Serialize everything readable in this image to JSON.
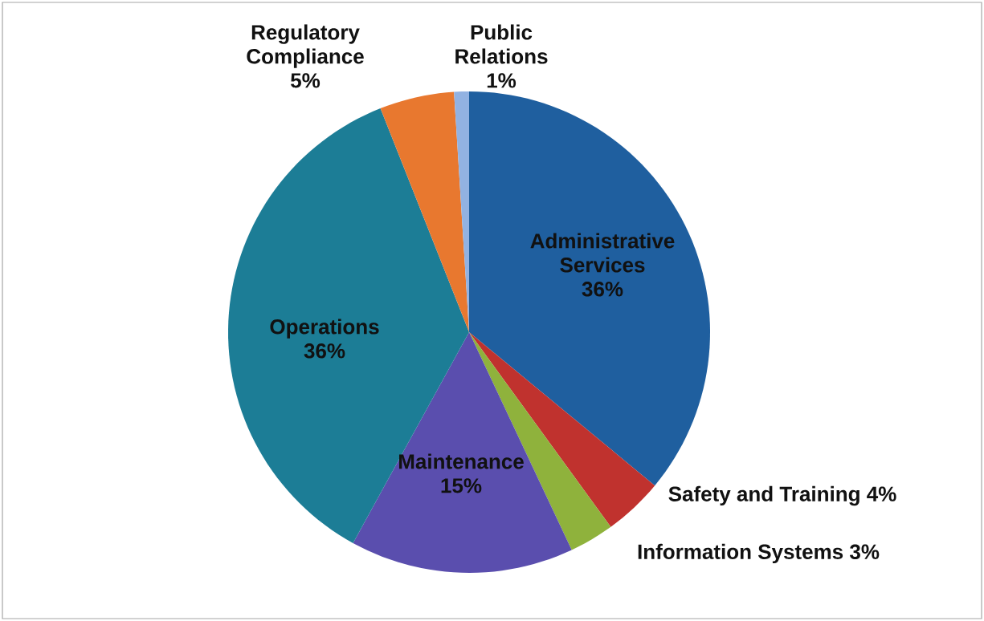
{
  "chart_data": {
    "type": "pie",
    "categories": [
      "Administrative Services",
      "Safety and Training",
      "Information Systems",
      "Maintenance",
      "Operations",
      "Regulatory Compliance",
      "Public Relations"
    ],
    "values": [
      36,
      4,
      3,
      15,
      36,
      5,
      1
    ],
    "colors": [
      "#1f5f9f",
      "#c0322e",
      "#8fb23c",
      "#5a4eae",
      "#1c7d96",
      "#e8782f",
      "#92b2e2"
    ],
    "value_labels": [
      "36%",
      "4%",
      "3%",
      "15%",
      "36%",
      "5%",
      "1%"
    ]
  }
}
